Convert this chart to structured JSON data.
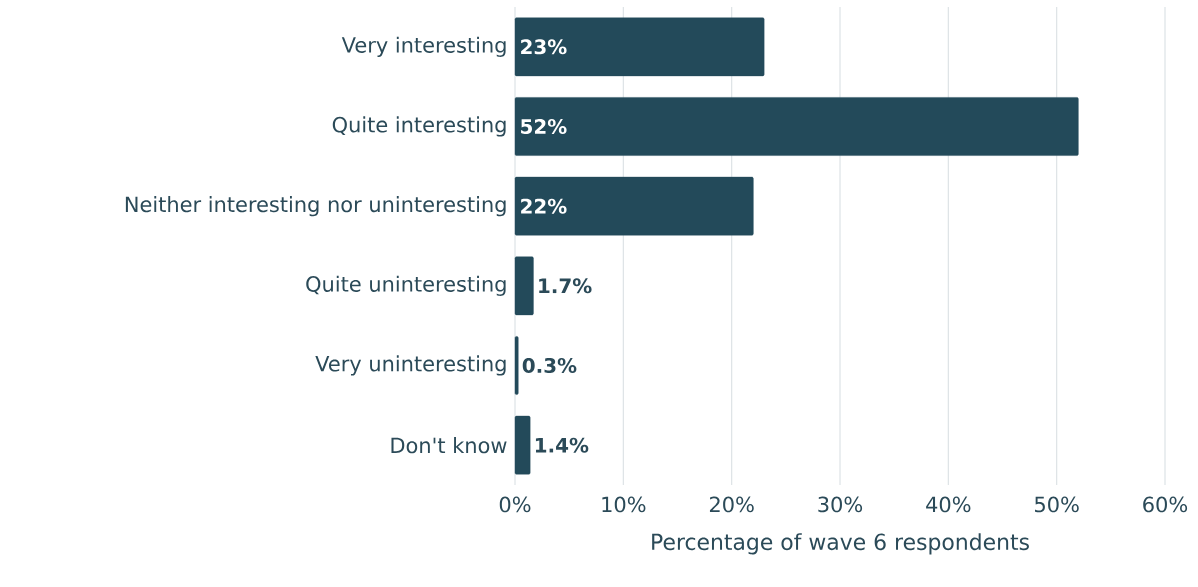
{
  "chart_data": {
    "type": "bar",
    "orientation": "horizontal",
    "categories": [
      "Very interesting",
      "Quite interesting",
      "Neither interesting nor uninteresting",
      "Quite uninteresting",
      "Very uninteresting",
      "Don't know"
    ],
    "values": [
      23,
      52,
      22,
      1.7,
      0.3,
      1.4
    ],
    "value_labels": [
      "23%",
      "52%",
      "22%",
      "1.7%",
      "0.3%",
      "1.4%"
    ],
    "color": "#234a5a",
    "xlim": [
      0,
      60
    ],
    "xticks": [
      {
        "value": 0,
        "label": "0%"
      },
      {
        "value": 10,
        "label": "10%"
      },
      {
        "value": 20,
        "label": "20%"
      },
      {
        "value": 30,
        "label": "30%"
      },
      {
        "value": 40,
        "label": "40%"
      },
      {
        "value": 50,
        "label": "50%"
      },
      {
        "value": 60,
        "label": "60%"
      }
    ],
    "xlabel": "Percentage of wave 6 respondents",
    "grid": "x"
  }
}
